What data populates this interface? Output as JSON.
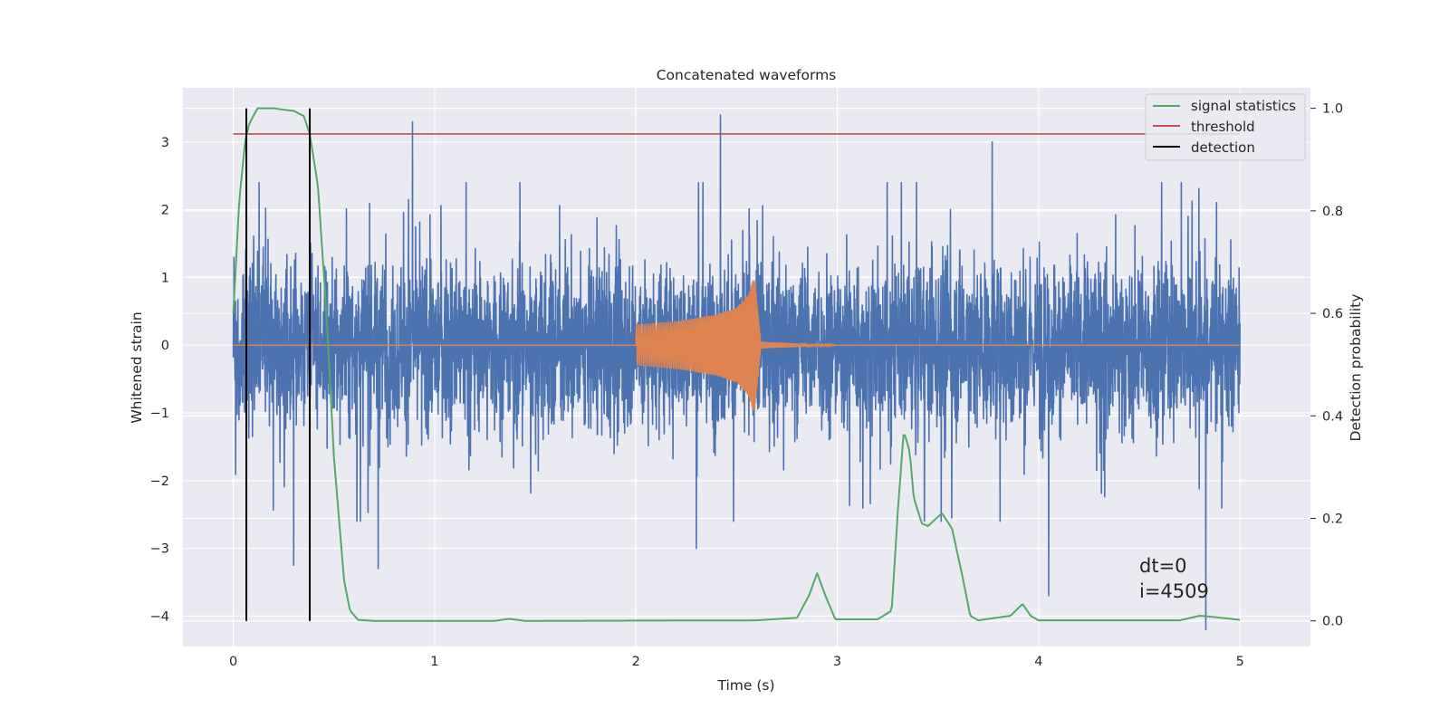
{
  "chart_data": {
    "type": "line",
    "title": "Concatenated waveforms",
    "xlabel": "Time (s)",
    "ylabel": "Whitened strain",
    "ylabel_right": "Detection probability",
    "xlim": [
      -0.25,
      5.35
    ],
    "ylim": [
      -4.45,
      3.8
    ],
    "ylim_right": [
      -0.05,
      1.04
    ],
    "xticks": [
      0,
      1,
      2,
      3,
      4,
      5
    ],
    "xtick_labels": [
      "0",
      "1",
      "2",
      "3",
      "4",
      "5"
    ],
    "yticks": [
      3,
      2,
      1,
      0,
      -1,
      -2,
      -3,
      -4
    ],
    "ytick_labels": [
      "3",
      "2",
      "1",
      "0",
      "−1",
      "−2",
      "−3",
      "−4"
    ],
    "yticks_right": [
      1.0,
      0.8,
      0.6,
      0.4,
      0.2,
      0.0
    ],
    "ytick_labels_right": [
      "1.0",
      "0.8",
      "0.6",
      "0.4",
      "0.2",
      "0.0"
    ],
    "grid": true,
    "legend_position": "top-right",
    "legend": [
      {
        "label": "signal statistics",
        "color": "#55a868"
      },
      {
        "label": "threshold",
        "color": "#c44e52"
      },
      {
        "label": "detection",
        "color": "#000000"
      }
    ],
    "annotations": [
      "dt=0",
      "i=4509"
    ],
    "series": [
      {
        "name": "",
        "color": "#4c72b0",
        "axis": "left",
        "kind": "noise",
        "x_range": [
          0,
          5
        ],
        "envelope": [
          -2.6,
          2.4
        ],
        "peaks": [
          [
            0.89,
            3.3
          ],
          [
            2.42,
            3.4
          ],
          [
            3.77,
            3.0
          ],
          [
            4.83,
            -4.2
          ],
          [
            4.05,
            -3.7
          ],
          [
            0.72,
            -3.3
          ],
          [
            0.3,
            -3.25
          ],
          [
            2.3,
            -3.0
          ]
        ]
      },
      {
        "name": "",
        "color": "#dd8452",
        "axis": "left",
        "kind": "chirp",
        "x": [
          2.0,
          2.2,
          2.4,
          2.5,
          2.56,
          2.58,
          2.59,
          2.62,
          3.0
        ],
        "amplitude": [
          0.3,
          0.35,
          0.45,
          0.55,
          0.75,
          0.95,
          1.0,
          0.05,
          0.0
        ]
      },
      {
        "name": "signal statistics",
        "color": "#55a868",
        "axis": "right",
        "x": [
          0,
          0.03,
          0.06,
          0.08,
          0.12,
          0.2,
          0.3,
          0.35,
          0.38,
          0.42,
          0.46,
          0.5,
          0.55,
          0.58,
          0.62,
          0.7,
          1.3,
          1.37,
          1.45,
          2.6,
          2.8,
          2.86,
          2.9,
          2.94,
          2.99,
          3.2,
          3.27,
          3.3,
          3.33,
          3.36,
          3.38,
          3.42,
          3.45,
          3.52,
          3.57,
          3.62,
          3.66,
          3.7,
          3.86,
          3.92,
          3.96,
          4.0,
          4.7,
          4.8,
          4.86,
          5.0
        ],
        "y": [
          0.6,
          0.82,
          0.94,
          0.97,
          1.0,
          1.0,
          0.995,
          0.985,
          0.95,
          0.85,
          0.62,
          0.32,
          0.08,
          0.02,
          0.002,
          0.0,
          0.0,
          0.004,
          0.0,
          0.001,
          0.006,
          0.05,
          0.093,
          0.05,
          0.003,
          0.003,
          0.02,
          0.21,
          0.37,
          0.33,
          0.24,
          0.19,
          0.185,
          0.21,
          0.18,
          0.09,
          0.01,
          0.001,
          0.01,
          0.033,
          0.01,
          0.001,
          0.001,
          0.01,
          0.008,
          0.002
        ]
      },
      {
        "name": "threshold",
        "color": "#c44e52",
        "axis": "right",
        "x": [
          0,
          5
        ],
        "y": [
          0.95,
          0.95
        ]
      },
      {
        "name": "detection",
        "color": "#000000",
        "axis": "right",
        "kind": "vlines",
        "x": [
          0.065,
          0.38
        ],
        "y": [
          0.0,
          1.0
        ]
      }
    ]
  }
}
